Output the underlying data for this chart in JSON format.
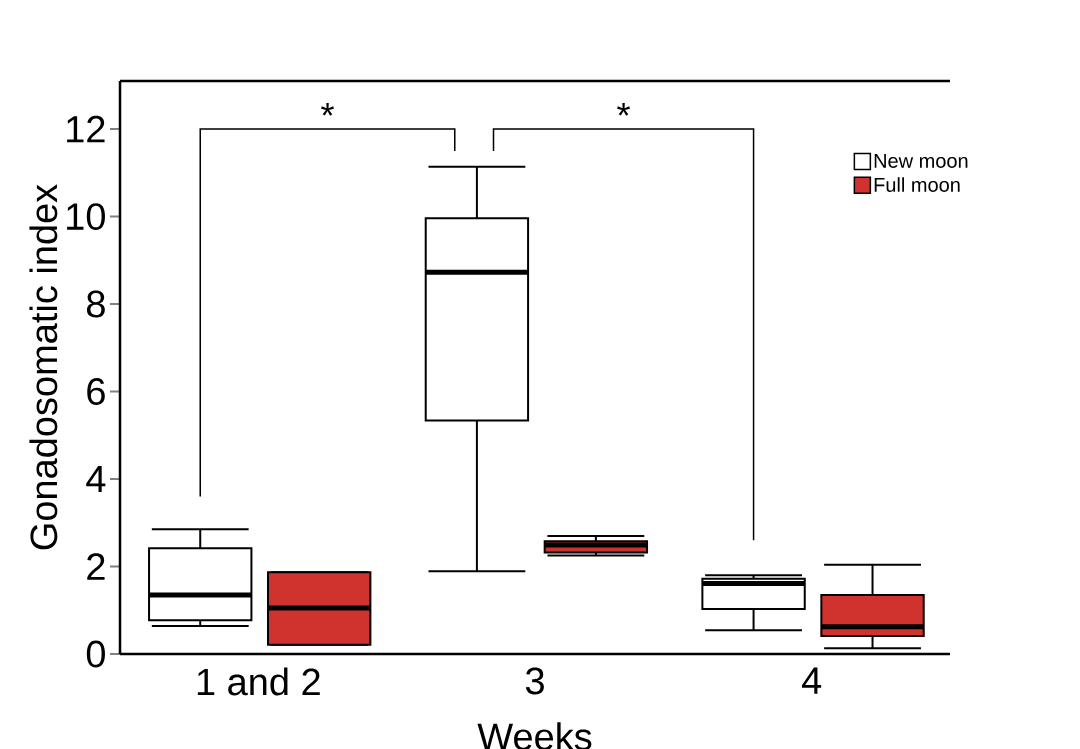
{
  "chart_data": {
    "type": "box",
    "xlabel": "Weeks",
    "ylabel": "Gonadosomatic index",
    "categories": [
      "1 and 2",
      "3",
      "4"
    ],
    "series": [
      {
        "name": "New moon",
        "color": "#ffffff",
        "boxes": [
          {
            "low": 0.64,
            "q1": 0.77,
            "median": 1.35,
            "q3": 2.42,
            "high": 2.85
          },
          {
            "low": 1.89,
            "q1": 5.34,
            "median": 8.73,
            "q3": 9.96,
            "high": 11.14
          },
          {
            "low": 0.54,
            "q1": 1.03,
            "median": 1.61,
            "q3": 1.72,
            "high": 1.8
          }
        ]
      },
      {
        "name": "Full moon",
        "color": "#d0332d",
        "boxes": [
          {
            "low": 0.21,
            "q1": 0.21,
            "median": 1.05,
            "q3": 1.87,
            "high": 1.87
          },
          {
            "low": 2.25,
            "q1": 2.32,
            "median": 2.49,
            "q3": 2.58,
            "high": 2.7
          },
          {
            "low": 0.13,
            "q1": 0.41,
            "median": 0.62,
            "q3": 1.35,
            "high": 2.04
          }
        ]
      }
    ],
    "ylim": [
      0,
      13.1
    ],
    "yticks": [
      0,
      2,
      4,
      6,
      8,
      10,
      12
    ],
    "legend": "top right",
    "annotations": [
      "*",
      "*"
    ]
  }
}
